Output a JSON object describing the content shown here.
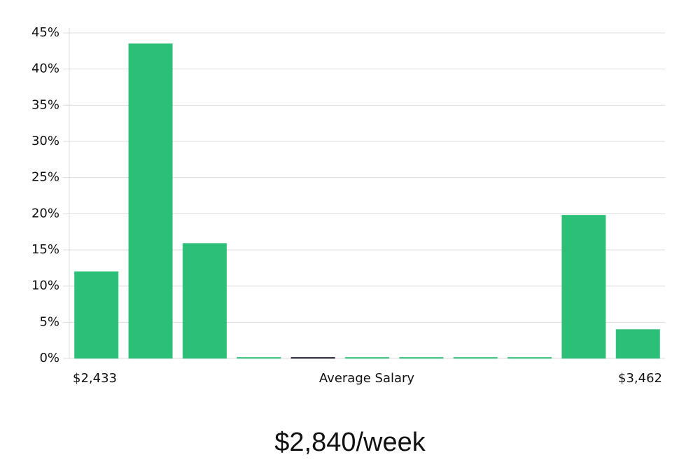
{
  "chart_data": {
    "type": "bar",
    "categories": [
      "$2,433",
      null,
      null,
      null,
      null,
      null,
      null,
      null,
      null,
      null,
      "$3,462"
    ],
    "values": [
      12,
      43.5,
      15.9,
      0,
      0,
      0,
      0,
      0,
      0,
      19.8,
      4
    ],
    "colors": [
      "#2bbf77",
      "#2bbf77",
      "#2bbf77",
      "#2bbf77",
      "#1a1a2e",
      "#2bbf77",
      "#2bbf77",
      "#2bbf77",
      "#2bbf77",
      "#2bbf77",
      "#2bbf77"
    ],
    "x_label": "Average Salary",
    "annotation": "$2,840/week",
    "ylim": [
      0,
      45
    ],
    "yticks": [
      {
        "value": 0,
        "label": "0%"
      },
      {
        "value": 5,
        "label": "5%"
      },
      {
        "value": 10,
        "label": "10%"
      },
      {
        "value": 15,
        "label": "15%"
      },
      {
        "value": 20,
        "label": "20%"
      },
      {
        "value": 25,
        "label": "25%"
      },
      {
        "value": 30,
        "label": "30%"
      },
      {
        "value": 35,
        "label": "35%"
      },
      {
        "value": 40,
        "label": "40%"
      },
      {
        "value": 45,
        "label": "45%"
      }
    ],
    "grid": true
  }
}
